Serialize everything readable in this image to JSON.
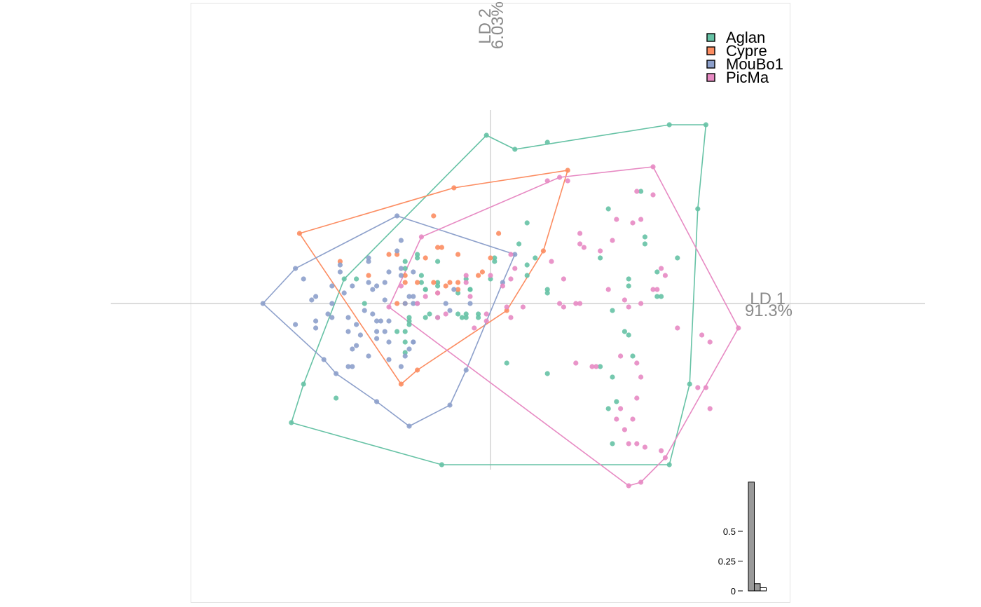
{
  "chart_data": {
    "type": "scatter",
    "subtype": "discriminant-analysis-scatter-with-convex-hulls",
    "x_axis": {
      "label": "LD 1",
      "variance": "91.3%"
    },
    "y_axis": {
      "label": "LD 2",
      "variance": "6.03%"
    },
    "legend": {
      "position": "top-right",
      "entries": [
        "Aglan",
        "Cypre",
        "MouBo1",
        "PicMa"
      ]
    },
    "series": [
      {
        "name": "Aglan",
        "color": "#66C2A5",
        "hull": [
          [
            -0.1,
            4.8
          ],
          [
            0.6,
            4.4
          ],
          [
            4.4,
            5.1
          ],
          [
            5.3,
            5.1
          ],
          [
            5.1,
            2.7
          ],
          [
            4.9,
            -2.3
          ],
          [
            4.4,
            -4.6
          ],
          [
            -1.2,
            -4.6
          ],
          [
            -4.9,
            -3.4
          ],
          [
            -4.6,
            -2.3
          ],
          [
            -3.6,
            0.7
          ]
        ],
        "points": [
          [
            -0.1,
            4.8
          ],
          [
            0.6,
            4.4
          ],
          [
            4.4,
            5.1
          ],
          [
            5.3,
            5.1
          ],
          [
            5.1,
            2.7
          ],
          [
            4.9,
            -2.3
          ],
          [
            4.4,
            -4.6
          ],
          [
            -1.2,
            -4.6
          ],
          [
            -4.9,
            -3.4
          ],
          [
            -4.6,
            -2.3
          ],
          [
            -3.6,
            0.7
          ],
          [
            1.4,
            4.6
          ],
          [
            0.9,
            2.3
          ],
          [
            0.7,
            1.7
          ],
          [
            2.9,
            2.7
          ],
          [
            3.7,
            3.2
          ],
          [
            3.8,
            1.9
          ],
          [
            3.8,
            1.7
          ],
          [
            0.9,
            1.1
          ],
          [
            1.1,
            1.3
          ],
          [
            2.7,
            1.3
          ],
          [
            4.6,
            1.3
          ],
          [
            4.1,
            0.9
          ],
          [
            3.4,
            0.7
          ],
          [
            3.4,
            0.5
          ],
          [
            4.1,
            0.2
          ],
          [
            4.2,
            0.2
          ],
          [
            1.4,
            0.4
          ],
          [
            1.4,
            0.3
          ],
          [
            0.9,
            0.8
          ],
          [
            0.1,
            1.3
          ],
          [
            0.1,
            1.2
          ],
          [
            0.0,
            0.7
          ],
          [
            -0.5,
            0.4
          ],
          [
            -0.5,
            0.4
          ],
          [
            -1.8,
            1.3
          ],
          [
            -1.8,
            1.4
          ],
          [
            -2.1,
            1.2
          ],
          [
            -2.1,
            1.0
          ],
          [
            -1.3,
            1.2
          ],
          [
            -1.7,
            0.6
          ],
          [
            -1.6,
            0.4
          ],
          [
            -1.7,
            0.8
          ],
          [
            -1.3,
            0.5
          ],
          [
            -0.8,
            0.3
          ],
          [
            -0.8,
            -0.3
          ],
          [
            -1.3,
            -0.4
          ],
          [
            -1.6,
            -0.4
          ],
          [
            -2.0,
            -0.5
          ],
          [
            -2.0,
            -0.6
          ],
          [
            -2.1,
            -0.8
          ],
          [
            -2.1,
            -1.1
          ],
          [
            -2.0,
            -0.4
          ],
          [
            -1.5,
            -0.3
          ],
          [
            -0.6,
            -0.3
          ],
          [
            -0.6,
            -0.4
          ],
          [
            -0.3,
            -0.4
          ],
          [
            -0.3,
            -0.3
          ],
          [
            -0.6,
            0.7
          ],
          [
            -1.3,
            0.6
          ],
          [
            -1.6,
            0.4
          ],
          [
            -2.1,
            -1.4
          ],
          [
            -3.3,
            0.7
          ],
          [
            -3.1,
            0.0
          ],
          [
            -3.8,
            -2.7
          ],
          [
            -2.3,
            -0.8
          ],
          [
            0.4,
            -1.7
          ],
          [
            1.4,
            -2.0
          ],
          [
            3.0,
            -0.2
          ],
          [
            3.3,
            -0.8
          ],
          [
            3.4,
            -0.9
          ],
          [
            3.5,
            -1.5
          ],
          [
            3.0,
            -2.1
          ],
          [
            2.9,
            -3.0
          ],
          [
            3.1,
            -2.8
          ],
          [
            3.0,
            -4.0
          ],
          [
            2.7,
            -1.8
          ],
          [
            -0.7,
            -0.4
          ]
        ]
      },
      {
        "name": "Cypre",
        "color": "#FC8D62",
        "hull": [
          [
            -4.7,
            2.0
          ],
          [
            -0.9,
            3.3
          ],
          [
            1.9,
            3.8
          ],
          [
            1.3,
            1.5
          ],
          [
            0.4,
            -0.2
          ],
          [
            -1.8,
            -1.9
          ],
          [
            -2.2,
            -2.3
          ]
        ],
        "points": [
          [
            -4.7,
            2.0
          ],
          [
            -0.9,
            3.3
          ],
          [
            1.9,
            3.8
          ],
          [
            1.3,
            1.5
          ],
          [
            0.4,
            -0.2
          ],
          [
            -1.8,
            -1.9
          ],
          [
            -2.2,
            -2.3
          ],
          [
            -1.4,
            2.5
          ],
          [
            -1.2,
            1.6
          ],
          [
            -1.3,
            1.6
          ],
          [
            -0.8,
            1.4
          ],
          [
            -2.5,
            1.4
          ],
          [
            -2.3,
            1.4
          ],
          [
            -1.6,
            1.3
          ],
          [
            -2.1,
            0.8
          ],
          [
            -2.1,
            0.6
          ],
          [
            -1.8,
            0.6
          ],
          [
            -1.4,
            0.6
          ],
          [
            -1.0,
            0.6
          ],
          [
            -1.1,
            0.5
          ],
          [
            -0.8,
            0.6
          ],
          [
            -0.3,
            0.8
          ],
          [
            0.0,
            1.3
          ],
          [
            -3.7,
            1.2
          ],
          [
            -2.3,
            0.0
          ],
          [
            -2.1,
            0.0
          ],
          [
            -3.0,
            0.8
          ],
          [
            0.2,
            2.0
          ],
          [
            -0.8,
            0.4
          ],
          [
            -1.3,
            0.3
          ],
          [
            -0.2,
            0.9
          ]
        ]
      },
      {
        "name": "MouBo1",
        "color": "#8DA0CB",
        "hull": [
          [
            -5.6,
            0.0
          ],
          [
            -4.8,
            1.0
          ],
          [
            -2.3,
            2.5
          ],
          [
            0.6,
            1.4
          ],
          [
            0.3,
            0.6
          ],
          [
            -0.6,
            -1.9
          ],
          [
            -1.0,
            -2.9
          ],
          [
            -2.0,
            -3.5
          ],
          [
            -2.8,
            -2.8
          ],
          [
            -3.8,
            -2.0
          ],
          [
            -4.1,
            -1.6
          ]
        ],
        "points": [
          [
            -5.6,
            0.0
          ],
          [
            -4.8,
            1.0
          ],
          [
            -2.3,
            2.5
          ],
          [
            0.6,
            1.4
          ],
          [
            0.3,
            0.6
          ],
          [
            -0.6,
            -1.9
          ],
          [
            -1.0,
            -2.9
          ],
          [
            -2.0,
            -3.5
          ],
          [
            -2.8,
            -2.8
          ],
          [
            -3.8,
            -2.0
          ],
          [
            -4.1,
            -1.6
          ],
          [
            -4.6,
            0.7
          ],
          [
            -3.7,
            1.1
          ],
          [
            -3.4,
            0.5
          ],
          [
            -3.6,
            0.3
          ],
          [
            -4.3,
            -0.7
          ],
          [
            -4.3,
            0.2
          ],
          [
            -4.4,
            0.1
          ],
          [
            -4.8,
            -0.6
          ],
          [
            -4.3,
            -0.5
          ],
          [
            -4.0,
            -0.3
          ],
          [
            -3.9,
            -0.4
          ],
          [
            -3.5,
            -0.4
          ],
          [
            -3.3,
            -0.6
          ],
          [
            -3.5,
            -0.8
          ],
          [
            -3.2,
            -0.9
          ],
          [
            -2.8,
            -0.8
          ],
          [
            -2.6,
            -0.8
          ],
          [
            -3.3,
            -1.2
          ],
          [
            -2.8,
            -1.0
          ],
          [
            -3.4,
            -1.3
          ],
          [
            -3.4,
            -1.8
          ],
          [
            -3.0,
            -1.5
          ],
          [
            -3.5,
            -1.8
          ],
          [
            -2.5,
            -1.6
          ],
          [
            -2.5,
            -1.1
          ],
          [
            -2.0,
            -1.3
          ],
          [
            -2.1,
            -1.5
          ],
          [
            -2.2,
            -1.8
          ],
          [
            -3.1,
            -0.2
          ],
          [
            -2.9,
            -0.3
          ],
          [
            -2.7,
            -0.5
          ],
          [
            -2.5,
            -0.5
          ],
          [
            -2.9,
            0.4
          ],
          [
            -2.8,
            0.5
          ],
          [
            -2.6,
            0.6
          ],
          [
            -3.0,
            0.6
          ],
          [
            -2.5,
            0.9
          ],
          [
            -2.2,
            1.0
          ],
          [
            -2.2,
            0.8
          ],
          [
            -2.2,
            1.8
          ],
          [
            -2.3,
            1.5
          ],
          [
            -1.9,
            0.2
          ],
          [
            -2.0,
            0.2
          ],
          [
            -2.1,
            0.0
          ],
          [
            -2.6,
            0.1
          ],
          [
            -2.8,
            -0.5
          ],
          [
            -1.9,
            -1.1
          ],
          [
            -1.9,
            -1.1
          ],
          [
            -3.9,
            0.0
          ],
          [
            -3.0,
            1.2
          ],
          [
            -3.9,
            0.5
          ],
          [
            -3.7,
            0.9
          ],
          [
            -0.5,
            0.0
          ],
          [
            -1.8,
            0.0
          ],
          [
            -1.9,
            0.0
          ],
          [
            -3.0,
            1.3
          ],
          [
            -1.9,
            0.9
          ],
          [
            -1.1,
            0.0
          ],
          [
            -0.9,
            0.4
          ],
          [
            -1.0,
            -0.2
          ]
        ]
      },
      {
        "name": "PicMa",
        "color": "#E78AC3",
        "hull": [
          [
            -2.5,
            -0.1
          ],
          [
            -1.7,
            1.9
          ],
          [
            1.7,
            3.6
          ],
          [
            4.0,
            3.9
          ],
          [
            6.1,
            -0.7
          ],
          [
            4.3,
            -4.4
          ],
          [
            3.7,
            -5.1
          ],
          [
            3.4,
            -5.2
          ]
        ],
        "points": [
          [
            -2.5,
            -0.1
          ],
          [
            -1.7,
            1.9
          ],
          [
            1.7,
            3.6
          ],
          [
            4.0,
            3.9
          ],
          [
            6.1,
            -0.7
          ],
          [
            4.3,
            -4.4
          ],
          [
            3.7,
            -5.1
          ],
          [
            3.4,
            -5.2
          ],
          [
            1.4,
            3.5
          ],
          [
            1.9,
            3.5
          ],
          [
            2.2,
            2.0
          ],
          [
            2.2,
            1.7
          ],
          [
            2.3,
            1.6
          ],
          [
            2.7,
            1.5
          ],
          [
            3.0,
            1.8
          ],
          [
            3.5,
            2.3
          ],
          [
            3.1,
            2.4
          ],
          [
            3.7,
            2.4
          ],
          [
            3.6,
            3.2
          ],
          [
            4.0,
            3.1
          ],
          [
            4.2,
            1.0
          ],
          [
            4.3,
            0.8
          ],
          [
            4.1,
            0.4
          ],
          [
            4.0,
            0.4
          ],
          [
            3.7,
            0.0
          ],
          [
            3.4,
            -0.1
          ],
          [
            3.3,
            0.1
          ],
          [
            2.9,
            0.4
          ],
          [
            2.1,
            0.0
          ],
          [
            2.2,
            0.0
          ],
          [
            1.8,
            0.7
          ],
          [
            1.5,
            1.2
          ],
          [
            1.7,
            0.0
          ],
          [
            1.8,
            -0.1
          ],
          [
            0.8,
            -0.1
          ],
          [
            0.0,
            0.8
          ],
          [
            -0.6,
            0.8
          ],
          [
            -0.6,
            0.6
          ],
          [
            -0.5,
            0.2
          ],
          [
            0.5,
            1.4
          ],
          [
            0.6,
            1.0
          ],
          [
            0.5,
            0.7
          ],
          [
            0.3,
            0.5
          ],
          [
            0.4,
            -0.1
          ],
          [
            0.5,
            -0.4
          ],
          [
            -0.1,
            -0.3
          ],
          [
            -1.1,
            -0.3
          ],
          [
            -1.3,
            -0.4
          ],
          [
            -0.4,
            -0.7
          ],
          [
            2.1,
            -1.7
          ],
          [
            2.5,
            -1.8
          ],
          [
            2.6,
            -1.8
          ],
          [
            3.2,
            -1.5
          ],
          [
            3.6,
            -1.7
          ],
          [
            3.7,
            -2.1
          ],
          [
            3.6,
            -2.7
          ],
          [
            3.2,
            -3.0
          ],
          [
            3.1,
            -3.3
          ],
          [
            3.5,
            -3.3
          ],
          [
            3.3,
            -3.6
          ],
          [
            3.6,
            -4.0
          ],
          [
            3.4,
            -4.0
          ],
          [
            3.8,
            -4.1
          ],
          [
            4.2,
            -4.2
          ],
          [
            5.4,
            -1.1
          ],
          [
            5.2,
            -0.9
          ],
          [
            4.6,
            -0.7
          ],
          [
            5.1,
            -2.4
          ],
          [
            5.4,
            -3.0
          ],
          [
            5.3,
            -2.4
          ],
          [
            -0.1,
            -0.5
          ],
          [
            -1.3,
            0.3
          ],
          [
            -1.8,
            0.0
          ],
          [
            -1.6,
            0.2
          ],
          [
            -2.2,
            0.5
          ]
        ]
      }
    ],
    "eigenvalue_inset": {
      "type": "bar",
      "values": [
        0.913,
        0.0603,
        0.0267
      ],
      "ylim": [
        0,
        1
      ],
      "tick_labels": [
        "0",
        "0.25",
        "0.5"
      ],
      "tick_values": [
        0,
        0.25,
        0.5
      ],
      "colors": [
        "#999999",
        "#999999",
        "#ffffff"
      ]
    }
  }
}
